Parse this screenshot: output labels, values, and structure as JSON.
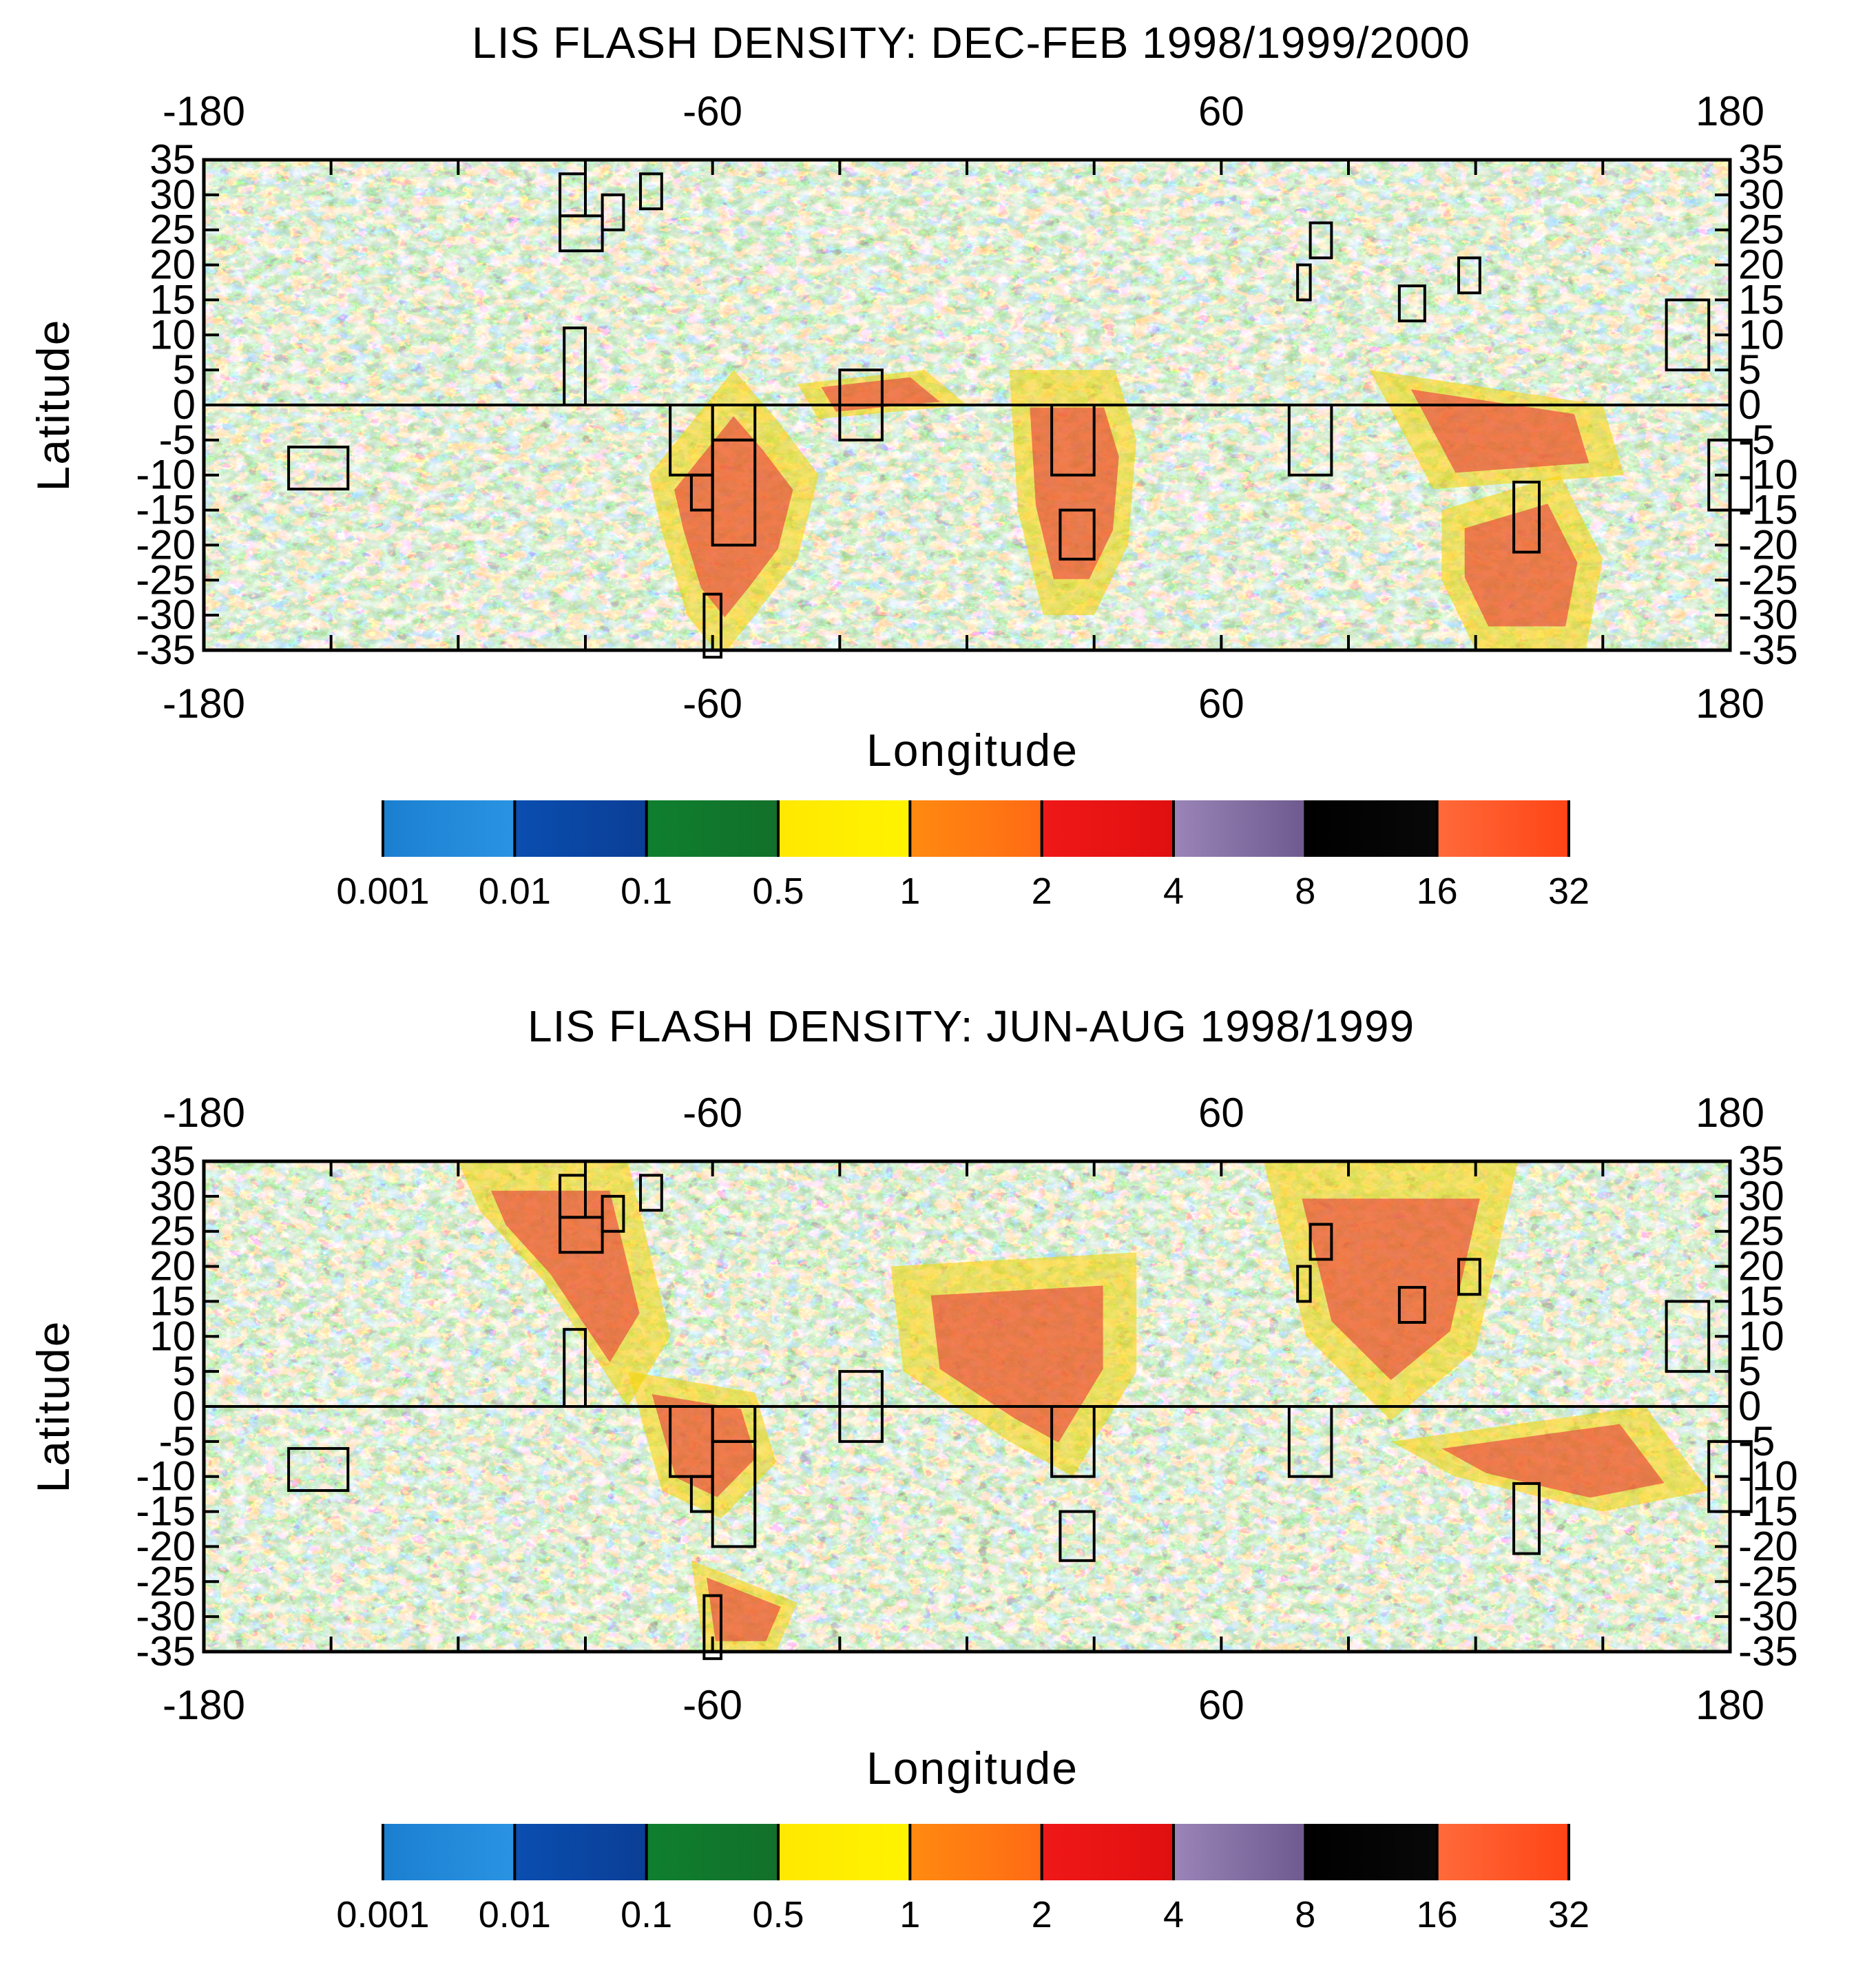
{
  "panels": [
    {
      "title": "LIS FLASH DENSITY: DEC-FEB 1998/1999/2000",
      "season": "djf",
      "colorbar_labels": [
        "0.001",
        "0.01",
        "0.1",
        "0.5",
        "1",
        "2",
        "4",
        "8",
        "16",
        "32"
      ]
    },
    {
      "title": "LIS FLASH DENSITY: JUN-AUG 1998/1999",
      "season": "jja",
      "colorbar_labels": [
        "0.001",
        "0.01",
        "0.1",
        "0.5",
        "1",
        "2",
        "4",
        "8",
        "16",
        "32"
      ]
    }
  ],
  "axes": {
    "xlabel": "Longitude",
    "ylabel": "Latitude",
    "xticks": [
      -180,
      -60,
      60,
      180
    ],
    "xtick_labels": [
      "-180",
      "-60",
      "60",
      "180"
    ],
    "yticks": [
      35,
      30,
      25,
      20,
      15,
      10,
      5,
      0,
      -5,
      -10,
      -15,
      -20,
      -25,
      -30,
      -35
    ],
    "ytick_labels": [
      "35",
      "30",
      "25",
      "20",
      "15",
      "10",
      "5",
      "0",
      "-5",
      "-10",
      "-15",
      "-20",
      "-25",
      "-30",
      "-35"
    ],
    "xlim": [
      -180,
      180
    ],
    "ylim": [
      -35,
      35
    ]
  },
  "colorbar_colors": [
    "#1a86d6",
    "#0a4aa8",
    "#117a2a",
    "#ffee00",
    "#ff7a12",
    "#ee1111",
    "#8a74a8",
    "#000000",
    "#ff5a2a"
  ],
  "regions": [
    {
      "lon": [
        -96,
        -90
      ],
      "lat": [
        27,
        33
      ]
    },
    {
      "lon": [
        -96,
        -86
      ],
      "lat": [
        22,
        27
      ]
    },
    {
      "lon": [
        -86,
        -81
      ],
      "lat": [
        25,
        30
      ]
    },
    {
      "lon": [
        -77,
        -72
      ],
      "lat": [
        28,
        33
      ]
    },
    {
      "lon": [
        -95,
        -90
      ],
      "lat": [
        0,
        11
      ]
    },
    {
      "lon": [
        -160,
        -146
      ],
      "lat": [
        -12,
        -6
      ]
    },
    {
      "lon": [
        -70,
        -60
      ],
      "lat": [
        -10,
        0
      ]
    },
    {
      "lon": [
        -60,
        -50
      ],
      "lat": [
        -5,
        0
      ]
    },
    {
      "lon": [
        -60,
        -50
      ],
      "lat": [
        -20,
        -5
      ]
    },
    {
      "lon": [
        -65,
        -60
      ],
      "lat": [
        -15,
        -10
      ]
    },
    {
      "lon": [
        -62,
        -58
      ],
      "lat": [
        -36,
        -27
      ]
    },
    {
      "lon": [
        -30,
        -20
      ],
      "lat": [
        -5,
        5
      ]
    },
    {
      "lon": [
        20,
        30
      ],
      "lat": [
        -10,
        0
      ]
    },
    {
      "lon": [
        22,
        30
      ],
      "lat": [
        -22,
        -15
      ]
    },
    {
      "lon": [
        78,
        81
      ],
      "lat": [
        15,
        20
      ]
    },
    {
      "lon": [
        81,
        86
      ],
      "lat": [
        21,
        26
      ]
    },
    {
      "lon": [
        76,
        86
      ],
      "lat": [
        -10,
        0
      ]
    },
    {
      "lon": [
        102,
        108
      ],
      "lat": [
        12,
        17
      ]
    },
    {
      "lon": [
        116,
        121
      ],
      "lat": [
        16,
        21
      ]
    },
    {
      "lon": [
        129,
        135
      ],
      "lat": [
        -21,
        -11
      ]
    },
    {
      "lon": [
        165,
        175
      ],
      "lat": [
        5,
        15
      ]
    },
    {
      "lon": [
        175,
        185
      ],
      "lat": [
        -15,
        -5
      ]
    }
  ],
  "colors": {
    "frame": "#000000",
    "background": "#ffffff"
  }
}
